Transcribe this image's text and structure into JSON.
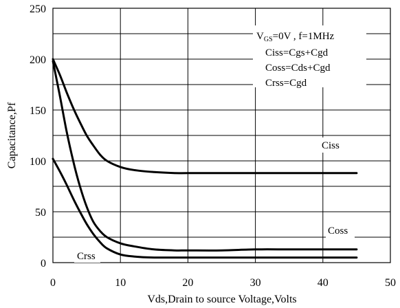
{
  "chart_data": {
    "type": "line",
    "xlabel": "Vds,Drain to source Voltage,Volts",
    "ylabel": "Capacitance,Pf",
    "xlim": [
      0,
      50
    ],
    "ylim": [
      0,
      250
    ],
    "xticks": [
      "0",
      "10",
      "20",
      "30",
      "40",
      "50"
    ],
    "yticks": [
      "0",
      "50",
      "100",
      "150",
      "200",
      "250"
    ],
    "grid": true,
    "annotations": {
      "vgs_prefix": "V",
      "vgs_sub": "GS",
      "vgs_rest": "=0V , f=1MHz",
      "ciss_def": "Ciss=Cgs+Cgd",
      "coss_def": "Coss=Cds+Cgd",
      "crss_def": "Crss=Cgd"
    },
    "series": [
      {
        "name": "Ciss",
        "x": [
          0,
          1,
          2,
          3,
          4,
          5,
          6,
          7,
          8,
          10,
          12,
          15,
          18,
          20,
          25,
          30,
          35,
          40,
          45
        ],
        "y": [
          200,
          185,
          168,
          152,
          138,
          125,
          115,
          106,
          100,
          94,
          91,
          89,
          88,
          88,
          88,
          88,
          88,
          88,
          88
        ]
      },
      {
        "name": "Coss",
        "x": [
          0,
          1,
          2,
          3,
          4,
          5,
          6,
          7,
          8,
          10,
          12,
          15,
          18,
          20,
          25,
          30,
          35,
          40,
          45
        ],
        "y": [
          198,
          165,
          130,
          100,
          75,
          55,
          40,
          31,
          25,
          19,
          16,
          13,
          12,
          12,
          12,
          13,
          13,
          13,
          13
        ]
      },
      {
        "name": "Crss",
        "x": [
          0,
          1,
          2,
          3,
          4,
          5,
          6,
          7,
          8,
          10,
          12,
          15,
          18,
          20,
          25,
          30,
          35,
          40,
          45
        ],
        "y": [
          102,
          90,
          77,
          63,
          50,
          38,
          28,
          20,
          14,
          8,
          6,
          5,
          5,
          5,
          5,
          5,
          5,
          5,
          5
        ]
      }
    ],
    "series_labels": [
      "Ciss",
      "Coss",
      "Crss"
    ]
  }
}
